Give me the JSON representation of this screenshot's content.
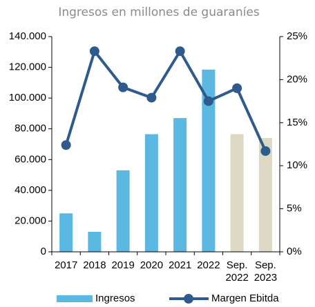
{
  "chart_data": {
    "type": "bar-line",
    "title": "Ingresos en millones de guaraníes",
    "categories": [
      "2017",
      "2018",
      "2019",
      "2020",
      "2021",
      "2022",
      "Sep. 2022",
      "Sep. 2023"
    ],
    "series": [
      {
        "name": "Ingresos",
        "type": "bar",
        "color": "#5bb8e0",
        "colors": [
          "#5bb8e0",
          "#5bb8e0",
          "#5bb8e0",
          "#5bb8e0",
          "#5bb8e0",
          "#5bb8e0",
          "#ddd8c4",
          "#ddd8c4"
        ],
        "values": [
          25000,
          13000,
          53000,
          76500,
          87000,
          118500,
          76500,
          74000
        ]
      },
      {
        "name": "Margen Ebitda",
        "type": "line",
        "axis": "y2",
        "color": "#2e5a8c",
        "values": [
          12.4,
          23.3,
          19.1,
          17.9,
          23.3,
          17.5,
          19.0,
          11.7
        ]
      }
    ],
    "ylim": [
      0,
      140000
    ],
    "yticks": [
      0,
      {
        "value": 20000,
        "label": "20.000"
      },
      {
        "value": 40000,
        "label": "40.000"
      },
      {
        "value": 60000,
        "label": "60.000"
      },
      {
        "value": 80000,
        "label": "80.000"
      },
      {
        "value": 100000,
        "label": "100.000"
      },
      {
        "value": 120000,
        "label": "120.000"
      },
      {
        "value": 140000,
        "label": "140.000"
      }
    ],
    "y2lim": [
      0,
      25
    ],
    "y2ticks": [
      {
        "value": 0,
        "label": "0%"
      },
      {
        "value": 5,
        "label": "5%"
      },
      {
        "value": 10,
        "label": "10%"
      },
      {
        "value": 15,
        "label": "15%"
      },
      {
        "value": 20,
        "label": "20%"
      },
      {
        "value": 25,
        "label": "25%"
      }
    ],
    "legend": "bottom"
  }
}
